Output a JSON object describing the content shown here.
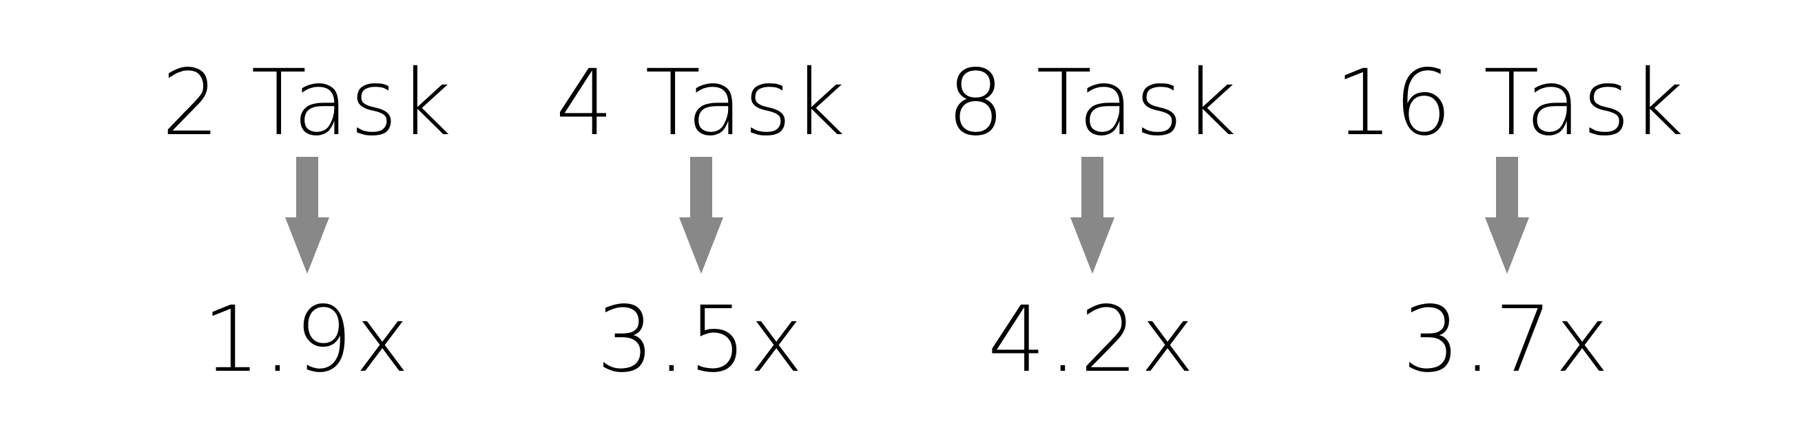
{
  "diagram": {
    "arrow_color": "#888888",
    "text_color": "#000000",
    "items": [
      {
        "task": "2 Task",
        "speedup": "1.9x"
      },
      {
        "task": "4 Task",
        "speedup": "3.5x"
      },
      {
        "task": "8 Task",
        "speedup": "4.2x"
      },
      {
        "task": "16 Task",
        "speedup": "3.7x"
      }
    ]
  }
}
